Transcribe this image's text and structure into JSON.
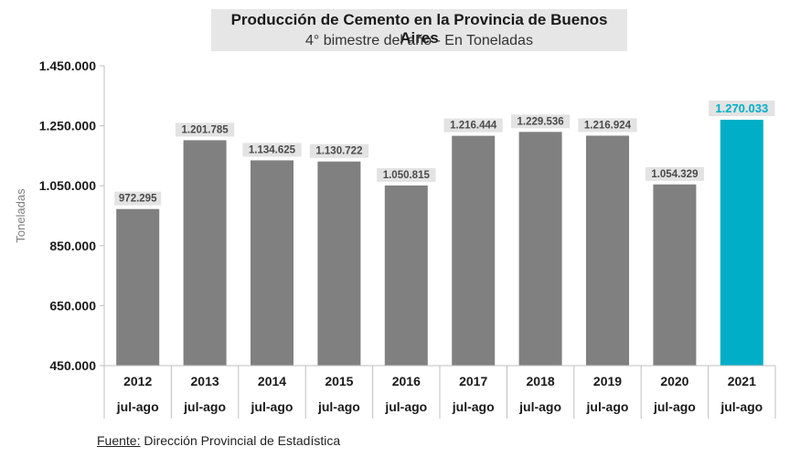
{
  "title": "Producción de Cemento en la Provincia de Buenos Aires",
  "subtitle": "4° bimestre del año - En Toneladas",
  "source_label": "Fuente:",
  "source_text": " Dirección Provincial de Estadística",
  "colors": {
    "bar": "#808080",
    "highlight": "#00afc7",
    "label_bg": "#e3e3e3",
    "label_text": "#4a4a4a",
    "highlight_label": "#00afc7"
  },
  "chart_data": {
    "type": "bar",
    "title": "Producción de Cemento en la Provincia de Buenos Aires",
    "subtitle": "4° bimestre del año - En Toneladas",
    "ylabel": "Toneladas",
    "xlabel": "",
    "categories": [
      "2012",
      "2013",
      "2014",
      "2015",
      "2016",
      "2017",
      "2018",
      "2019",
      "2020",
      "2021"
    ],
    "category_sublabel": "jul-ago",
    "values": [
      972295,
      1201785,
      1134625,
      1130722,
      1050815,
      1216444,
      1229536,
      1216924,
      1054329,
      1270033
    ],
    "value_labels": [
      "972.295",
      "1.201.785",
      "1.134.625",
      "1.130.722",
      "1.050.815",
      "1.216.444",
      "1.229.536",
      "1.216.924",
      "1.054.329",
      "1.270.033"
    ],
    "highlight_index": 9,
    "ylim": [
      450000,
      1450000
    ],
    "yticks": [
      450000,
      650000,
      850000,
      1050000,
      1250000,
      1450000
    ],
    "ytick_labels": [
      "450.000",
      "650.000",
      "850.000",
      "1.050.000",
      "1.250.000",
      "1.450.000"
    ],
    "grid": false,
    "legend": "none"
  }
}
